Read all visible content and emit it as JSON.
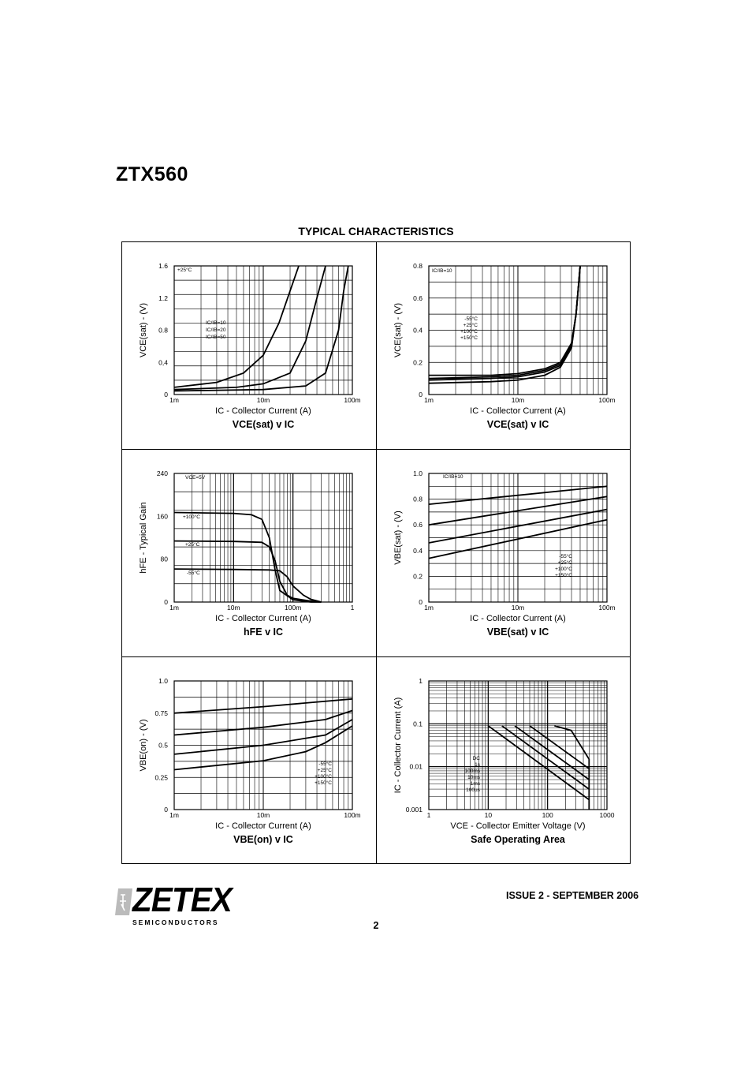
{
  "document": {
    "part_number": "ZTX560",
    "section_title": "TYPICAL CHARACTERISTICS",
    "issue": "ISSUE 2 - SEPTEMBER 2006",
    "page_number": "2",
    "logo": {
      "word": "ZETEX",
      "sub": "SEMICONDUCTORS"
    }
  },
  "chart_data": [
    {
      "type": "line",
      "title": "VCE(sat) v IC",
      "xlabel": "IC - Collector Current (A)",
      "ylabel": "VCE(sat) - (V)",
      "x_scale": "log",
      "xlim": [
        0.001,
        0.1
      ],
      "ylim": [
        0,
        1.8
      ],
      "x_ticks": [
        "1m",
        "10m",
        "100m"
      ],
      "y_ticks": [
        "0",
        "0,4",
        "0.8",
        "1.2",
        "1.6"
      ],
      "annotations": [
        "+25°C",
        "IC/IB=10",
        "IC/IB=20",
        "IC/IB=50"
      ],
      "series": [
        {
          "x": [
            0.001,
            0.003,
            0.006,
            0.01,
            0.015,
            0.02,
            0.025
          ],
          "y": [
            0.1,
            0.17,
            0.3,
            0.55,
            1.0,
            1.45,
            1.8
          ]
        },
        {
          "x": [
            0.001,
            0.005,
            0.01,
            0.02,
            0.03,
            0.04,
            0.05
          ],
          "y": [
            0.07,
            0.1,
            0.15,
            0.3,
            0.75,
            1.35,
            1.8
          ]
        },
        {
          "x": [
            0.001,
            0.01,
            0.03,
            0.05,
            0.07,
            0.08,
            0.09
          ],
          "y": [
            0.05,
            0.07,
            0.12,
            0.3,
            0.9,
            1.45,
            1.8
          ]
        }
      ]
    },
    {
      "type": "line",
      "title": "VCE(sat) v IC",
      "xlabel": "IC - Collector Current (A)",
      "ylabel": "VCE(sat) - (V)",
      "x_scale": "log",
      "xlim": [
        0.001,
        0.1
      ],
      "ylim": [
        0,
        0.8
      ],
      "x_ticks": [
        "1m",
        "10m",
        "100m"
      ],
      "y_ticks": [
        "0",
        "0.2",
        "0.4",
        "0.6",
        "0.8"
      ],
      "annotations": [
        "IC/IB=10",
        "-55°C",
        "+25°C",
        "+100°C",
        "+150°C"
      ],
      "series": [
        {
          "x": [
            0.001,
            0.005,
            0.01,
            0.02,
            0.03,
            0.04,
            0.045,
            0.05
          ],
          "y": [
            0.12,
            0.12,
            0.13,
            0.16,
            0.2,
            0.32,
            0.5,
            0.8
          ]
        },
        {
          "x": [
            0.001,
            0.005,
            0.01,
            0.02,
            0.03,
            0.04,
            0.045,
            0.05
          ],
          "y": [
            0.1,
            0.11,
            0.12,
            0.15,
            0.19,
            0.31,
            0.5,
            0.8
          ]
        },
        {
          "x": [
            0.001,
            0.005,
            0.01,
            0.02,
            0.03,
            0.04,
            0.045,
            0.05
          ],
          "y": [
            0.09,
            0.1,
            0.11,
            0.14,
            0.18,
            0.3,
            0.5,
            0.8
          ]
        },
        {
          "x": [
            0.001,
            0.005,
            0.01,
            0.02,
            0.03,
            0.04,
            0.045,
            0.05
          ],
          "y": [
            0.07,
            0.08,
            0.09,
            0.12,
            0.17,
            0.29,
            0.5,
            0.8
          ]
        }
      ]
    },
    {
      "type": "line",
      "title": "hFE v IC",
      "xlabel": "IC - Collector Current (A)",
      "ylabel": "hFE - Typical Gain",
      "x_scale": "log",
      "xlim": [
        0.001,
        1
      ],
      "ylim": [
        0,
        280
      ],
      "x_ticks": [
        "1m",
        "10m",
        "100m",
        "1"
      ],
      "y_ticks": [
        "0",
        "80",
        "160",
        "240"
      ],
      "annotations": [
        "VCE=5V",
        "+100°C",
        "+25°C",
        "-55°C"
      ],
      "series": [
        {
          "x": [
            0.001,
            0.01,
            0.02,
            0.03,
            0.04,
            0.05,
            0.06,
            0.1,
            0.2,
            0.3
          ],
          "y": [
            195,
            193,
            190,
            180,
            140,
            70,
            25,
            5,
            0,
            0
          ]
        },
        {
          "x": [
            0.001,
            0.01,
            0.03,
            0.04,
            0.05,
            0.06,
            0.08,
            0.1,
            0.2,
            0.3
          ],
          "y": [
            133,
            132,
            130,
            120,
            90,
            45,
            15,
            8,
            2,
            0
          ]
        },
        {
          "x": [
            0.001,
            0.01,
            0.04,
            0.06,
            0.08,
            0.1,
            0.15,
            0.2,
            0.3
          ],
          "y": [
            72,
            71,
            70,
            68,
            55,
            35,
            15,
            6,
            0
          ]
        }
      ]
    },
    {
      "type": "line",
      "title": "VBE(sat) v IC",
      "xlabel": "IC - Collector Current (A)",
      "ylabel": "VBE(sat) - (V)",
      "x_scale": "log",
      "xlim": [
        0.001,
        0.1
      ],
      "ylim": [
        0,
        1.0
      ],
      "x_ticks": [
        "1m",
        "10m",
        "100m"
      ],
      "y_ticks": [
        "0",
        "0.2",
        "0.4",
        "0.6",
        "0.8",
        "1.0"
      ],
      "annotations": [
        "IC/IB=10",
        "-55°C",
        "+25°C",
        "+100°C",
        "+150°C"
      ],
      "series": [
        {
          "x": [
            0.001,
            0.1
          ],
          "y": [
            0.76,
            0.9
          ]
        },
        {
          "x": [
            0.001,
            0.1
          ],
          "y": [
            0.6,
            0.82
          ]
        },
        {
          "x": [
            0.001,
            0.1
          ],
          "y": [
            0.46,
            0.72
          ]
        },
        {
          "x": [
            0.001,
            0.1
          ],
          "y": [
            0.34,
            0.64
          ]
        }
      ]
    },
    {
      "type": "line",
      "title": "VBE(on) v IC",
      "xlabel": "IC - Collector Current (A)",
      "ylabel": "VBE(on) - (V)",
      "x_scale": "log",
      "xlim": [
        0.001,
        0.1
      ],
      "ylim": [
        0,
        1.0
      ],
      "x_ticks": [
        "1m",
        "10m",
        "100m"
      ],
      "y_ticks": [
        "0",
        "0.25",
        "0.5",
        "0.75",
        "1.0"
      ],
      "annotations": [
        "-55°C",
        "+25°C",
        "+100°C",
        "+150°C"
      ],
      "series": [
        {
          "x": [
            0.001,
            0.01,
            0.1
          ],
          "y": [
            0.75,
            0.8,
            0.86
          ]
        },
        {
          "x": [
            0.001,
            0.01,
            0.05,
            0.1
          ],
          "y": [
            0.58,
            0.64,
            0.7,
            0.77
          ]
        },
        {
          "x": [
            0.001,
            0.01,
            0.05,
            0.1
          ],
          "y": [
            0.43,
            0.5,
            0.58,
            0.7
          ]
        },
        {
          "x": [
            0.001,
            0.01,
            0.03,
            0.05,
            0.1
          ],
          "y": [
            0.31,
            0.38,
            0.45,
            0.52,
            0.65
          ]
        }
      ]
    },
    {
      "type": "line",
      "title": "Safe Operating Area",
      "xlabel": "VCE - Collector Emitter Voltage (V)",
      "ylabel": "IC - Collector Current (A)",
      "x_scale": "log",
      "y_scale": "log",
      "xlim": [
        1,
        1000
      ],
      "ylim": [
        0.001,
        1
      ],
      "x_ticks": [
        "1",
        "10",
        "100",
        "1000"
      ],
      "y_ticks": [
        "0.001",
        "0.01",
        "0.1",
        "1"
      ],
      "annotations": [
        "DC",
        "1s",
        "100ms",
        "10ms",
        "1ms",
        "100µs"
      ],
      "series": [
        {
          "x": [
            10,
            500
          ],
          "y": [
            0.09,
            0.0017
          ]
        },
        {
          "x": [
            17,
            500
          ],
          "y": [
            0.09,
            0.003
          ]
        },
        {
          "x": [
            28,
            500
          ],
          "y": [
            0.09,
            0.005
          ]
        },
        {
          "x": [
            50,
            500
          ],
          "y": [
            0.09,
            0.009
          ]
        },
        {
          "x": [
            130,
            250,
            500,
            500
          ],
          "y": [
            0.09,
            0.07,
            0.015,
            0.001
          ]
        }
      ]
    }
  ]
}
